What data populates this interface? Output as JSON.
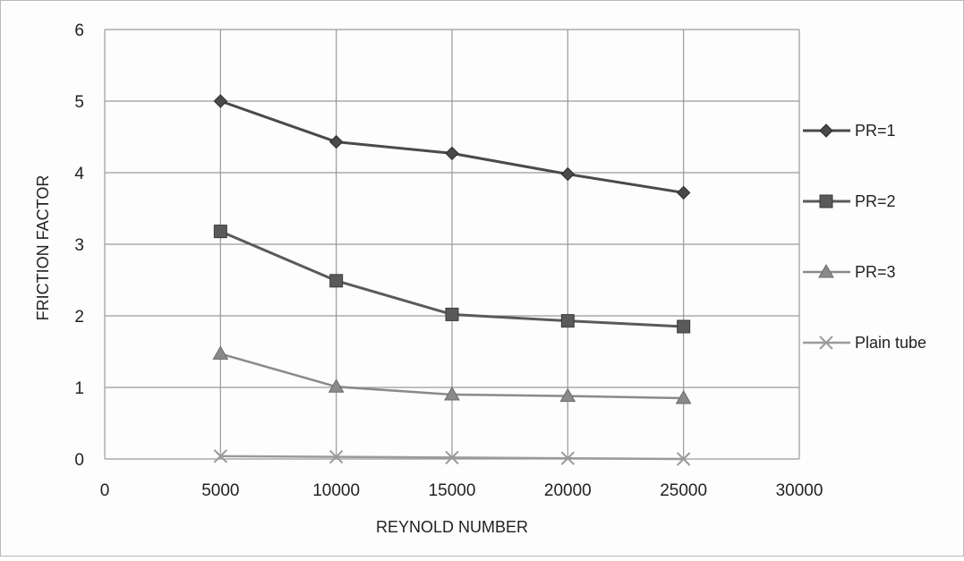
{
  "chart_data": {
    "type": "line",
    "title": "",
    "xlabel": "REYNOLD NUMBER",
    "ylabel": "FRICTION FACTOR",
    "xlim": [
      0,
      30000
    ],
    "ylim": [
      0,
      6
    ],
    "x_ticks": [
      "0",
      "5000",
      "10000",
      "15000",
      "20000",
      "25000",
      "30000"
    ],
    "y_ticks": [
      "0",
      "1",
      "2",
      "3",
      "4",
      "5",
      "6"
    ],
    "grid": true,
    "legend_position": "right",
    "x": [
      5000,
      10000,
      15000,
      20000,
      25000
    ],
    "series": [
      {
        "name": "PR=1",
        "marker": "diamond",
        "color": "#4a4a4a",
        "values": [
          5.0,
          4.43,
          4.27,
          3.98,
          3.72
        ]
      },
      {
        "name": "PR=2",
        "marker": "square",
        "color": "#5a5a5a",
        "values": [
          3.18,
          2.49,
          2.02,
          1.93,
          1.85
        ]
      },
      {
        "name": "PR=3",
        "marker": "triangle",
        "color": "#8a8a8a",
        "values": [
          1.47,
          1.01,
          0.9,
          0.88,
          0.85
        ]
      },
      {
        "name": "Plain tube",
        "marker": "x",
        "color": "#9a9a9a",
        "values": [
          0.04,
          0.03,
          0.02,
          0.01,
          0.0
        ]
      }
    ]
  }
}
